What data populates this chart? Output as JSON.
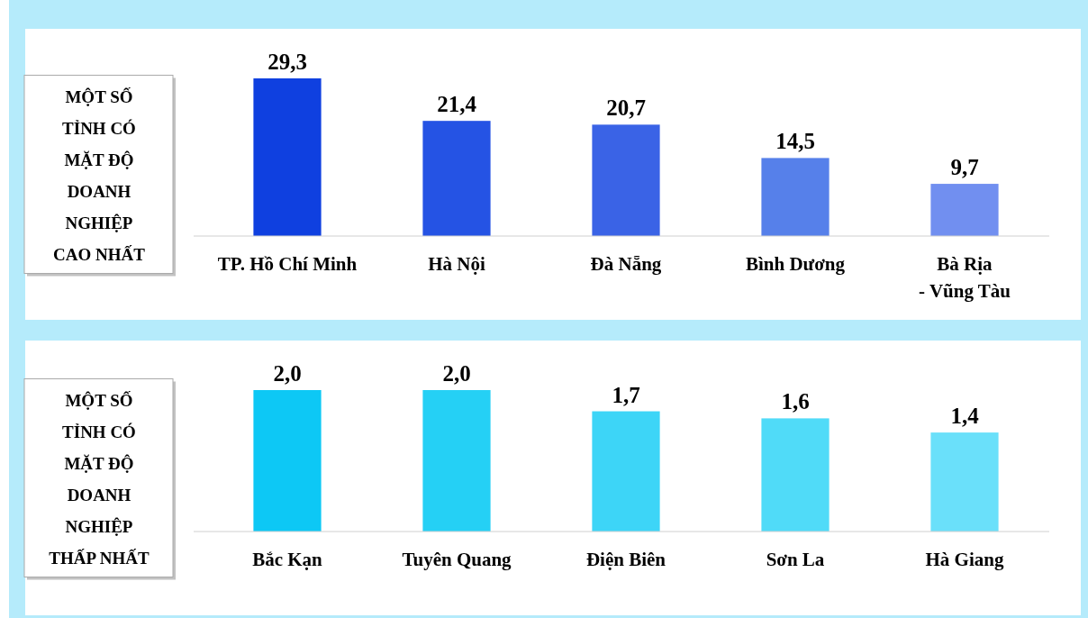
{
  "chart_data": [
    {
      "type": "bar",
      "title": "MỘT SỐ TỈNH CÓ MẶT ĐỘ DOANH NGHIỆP CAO NHẤT",
      "categories": [
        "TP. Hồ Chí Minh",
        "Hà Nội",
        "Đà Nẵng",
        "Bình Dương",
        "Bà Rịa - Vũng Tàu"
      ],
      "values": [
        29.3,
        21.4,
        20.7,
        14.5,
        9.7
      ],
      "value_labels": [
        "29,3",
        "21,4",
        "20,7",
        "14,5",
        "9,7"
      ],
      "colors": [
        "#0f40e0",
        "#2553e4",
        "#3a63e6",
        "#5680ea",
        "#718ff0"
      ]
    },
    {
      "type": "bar",
      "title": "MỘT SỐ TỈNH CÓ MẶT ĐỘ DOANH NGHIỆP THẤP NHẤT",
      "categories": [
        "Bắc Kạn",
        "Tuyên Quang",
        "Điện Biên",
        "Sơn La",
        "Hà Giang"
      ],
      "values": [
        2.0,
        2.0,
        1.7,
        1.6,
        1.4
      ],
      "value_labels": [
        "2,0",
        "2,0",
        "1,7",
        "1,6",
        "1,4"
      ],
      "colors": [
        "#0dc8f5",
        "#25d0f5",
        "#3dd5f7",
        "#50dbf8",
        "#6ae0fa"
      ]
    }
  ]
}
